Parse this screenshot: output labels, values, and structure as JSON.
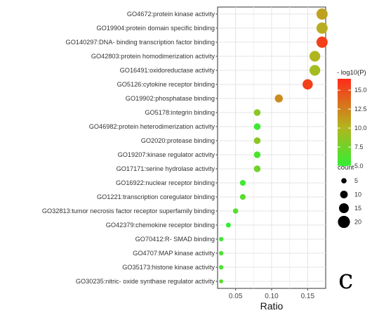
{
  "chart_data": {
    "type": "scatter",
    "xlabel": "Ratio",
    "x_ticks": [
      "0.05",
      "0.10",
      "0.15"
    ],
    "xlim": [
      0.025,
      0.175
    ],
    "grid": true,
    "terms": [
      {
        "label": "GO4672:protein kinase activity",
        "ratio": 0.17,
        "count": 18,
        "log10p": 11.0
      },
      {
        "label": "GO19904:protein domain specific binding",
        "ratio": 0.17,
        "count": 18,
        "log10p": 10.5
      },
      {
        "label": "GO140297:DNA- binding transcription factor binding",
        "ratio": 0.17,
        "count": 18,
        "log10p": 15.5
      },
      {
        "label": "GO42803:protein homodimerization activity",
        "ratio": 0.16,
        "count": 17,
        "log10p": 10.0
      },
      {
        "label": "GO16491:oxidoreductase activity",
        "ratio": 0.16,
        "count": 17,
        "log10p": 9.5
      },
      {
        "label": "GO5126:cytokine receptor binding",
        "ratio": 0.15,
        "count": 16,
        "log10p": 15.5
      },
      {
        "label": "GO19902:phosphatase binding",
        "ratio": 0.11,
        "count": 11,
        "log10p": 12.0
      },
      {
        "label": "GO5178:integrin binding",
        "ratio": 0.08,
        "count": 8,
        "log10p": 8.5
      },
      {
        "label": "GO46982:protein heterodimerization activity",
        "ratio": 0.08,
        "count": 8,
        "log10p": 5.5
      },
      {
        "label": "GO2020:protease binding",
        "ratio": 0.08,
        "count": 8,
        "log10p": 8.5
      },
      {
        "label": "GO19207:kinase regulator activity",
        "ratio": 0.08,
        "count": 8,
        "log10p": 6.0
      },
      {
        "label": "GO17171:serine hydrolase activity",
        "ratio": 0.08,
        "count": 8,
        "log10p": 7.5
      },
      {
        "label": "GO16922:nuclear receptor binding",
        "ratio": 0.06,
        "count": 6,
        "log10p": 5.5
      },
      {
        "label": "GO1221:transcription coregulator binding",
        "ratio": 0.06,
        "count": 6,
        "log10p": 6.5
      },
      {
        "label": "GO32813:tumor necrosis factor receptor superfamily binding",
        "ratio": 0.05,
        "count": 5,
        "log10p": 6.5
      },
      {
        "label": "GO42379:chemokine receptor binding",
        "ratio": 0.04,
        "count": 4,
        "log10p": 5.0
      },
      {
        "label": "GO70412:R- SMAD binding",
        "ratio": 0.03,
        "count": 3,
        "log10p": 5.5
      },
      {
        "label": "GO4707:MAP kinase activity",
        "ratio": 0.03,
        "count": 3,
        "log10p": 6.0
      },
      {
        "label": "GO35173:histone kinase activity",
        "ratio": 0.03,
        "count": 3,
        "log10p": 6.0
      },
      {
        "label": "GO30235:nitric- oxide synthase regulator activity",
        "ratio": 0.03,
        "count": 2,
        "log10p": 6.5
      }
    ],
    "color_legend": {
      "title": "- log10(P)",
      "ticks": [
        "15.0",
        "12.5",
        "10.0",
        "7.5",
        "5.0"
      ],
      "tick_values": [
        15.0,
        12.5,
        10.0,
        7.5,
        5.0
      ],
      "range": [
        5.0,
        16.5
      ],
      "colors": [
        "#33ee33",
        "#b4b41e",
        "#ff2a1a"
      ]
    },
    "size_legend": {
      "title": "count",
      "labels": [
        "5",
        "10",
        "15",
        "20"
      ],
      "values": [
        5,
        10,
        15,
        20
      ]
    },
    "panel_label": "c"
  }
}
